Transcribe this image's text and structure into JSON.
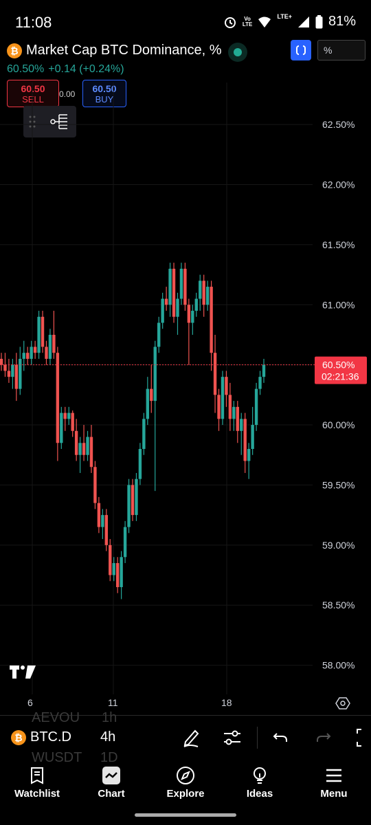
{
  "status_bar": {
    "time": "11:08",
    "volte_top": "Vo",
    "volte_bottom": "LTE",
    "lte_label": "LTE+",
    "battery": "81%"
  },
  "header": {
    "coin_glyph": "₿",
    "title": "Market Cap BTC Dominance, %",
    "price": "60.50%",
    "change": "+0.14 (+0.24%)",
    "percent_field": "%",
    "sell_price": "60.50",
    "sell_label": "SELL",
    "buy_price": "60.50",
    "buy_label": "BUY",
    "spread": "0.00"
  },
  "chart_data": {
    "type": "candlestick",
    "x_ticks": [
      "6",
      "11",
      "18"
    ],
    "y_ticks": [
      "62.50%",
      "62.00%",
      "61.50%",
      "61.00%",
      "60.50%",
      "60.00%",
      "59.50%",
      "59.00%",
      "58.50%",
      "58.00%"
    ],
    "ylim": [
      57.7,
      62.85
    ],
    "current_price_label": "60.50%",
    "countdown": "02:21:36",
    "up_color": "#26a69a",
    "down_color": "#ef5350",
    "candles": [
      [
        60.55,
        60.6,
        60.45,
        60.5
      ],
      [
        60.5,
        60.6,
        60.4,
        60.45
      ],
      [
        60.45,
        60.55,
        60.35,
        60.4
      ],
      [
        60.4,
        60.55,
        60.3,
        60.5
      ],
      [
        60.5,
        60.6,
        60.2,
        60.3
      ],
      [
        60.3,
        60.65,
        60.25,
        60.55
      ],
      [
        60.55,
        60.7,
        60.45,
        60.6
      ],
      [
        60.6,
        60.65,
        60.5,
        60.55
      ],
      [
        60.55,
        60.7,
        60.5,
        60.65
      ],
      [
        60.65,
        60.7,
        60.55,
        60.6
      ],
      [
        60.6,
        60.95,
        60.55,
        60.9
      ],
      [
        60.9,
        60.95,
        60.6,
        60.65
      ],
      [
        60.65,
        60.7,
        60.5,
        60.55
      ],
      [
        60.55,
        60.8,
        60.5,
        60.75
      ],
      [
        60.75,
        60.95,
        60.55,
        60.6
      ],
      [
        60.6,
        60.65,
        59.7,
        59.85
      ],
      [
        59.85,
        60.15,
        59.8,
        60.1
      ],
      [
        60.1,
        60.15,
        59.95,
        60.05
      ],
      [
        60.05,
        60.15,
        60.0,
        60.1
      ],
      [
        60.1,
        60.12,
        59.9,
        59.95
      ],
      [
        59.95,
        60.05,
        59.7,
        59.75
      ],
      [
        59.75,
        59.9,
        59.6,
        59.85
      ],
      [
        59.85,
        60.0,
        59.7,
        59.75
      ],
      [
        59.75,
        59.95,
        59.7,
        59.9
      ],
      [
        59.9,
        60.0,
        59.6,
        59.65
      ],
      [
        59.65,
        59.7,
        59.3,
        59.35
      ],
      [
        59.35,
        59.4,
        59.1,
        59.15
      ],
      [
        59.15,
        59.3,
        59.05,
        59.25
      ],
      [
        59.25,
        59.3,
        58.95,
        59.0
      ],
      [
        59.0,
        59.05,
        58.7,
        58.75
      ],
      [
        58.75,
        58.9,
        58.7,
        58.85
      ],
      [
        58.85,
        58.9,
        58.6,
        58.65
      ],
      [
        58.65,
        58.95,
        58.55,
        58.9
      ],
      [
        58.9,
        59.2,
        58.85,
        59.15
      ],
      [
        59.15,
        59.55,
        59.1,
        59.5
      ],
      [
        59.5,
        59.55,
        59.2,
        59.25
      ],
      [
        59.25,
        59.6,
        59.2,
        59.55
      ],
      [
        59.55,
        59.85,
        59.5,
        59.8
      ],
      [
        59.8,
        60.1,
        59.75,
        60.05
      ],
      [
        60.05,
        60.4,
        60.0,
        60.3
      ],
      [
        60.3,
        60.5,
        60.1,
        60.2
      ],
      [
        60.2,
        60.7,
        59.45,
        60.65
      ],
      [
        60.65,
        60.9,
        60.6,
        60.85
      ],
      [
        60.85,
        61.1,
        60.8,
        61.05
      ],
      [
        61.05,
        61.15,
        60.95,
        61.0
      ],
      [
        61.0,
        61.35,
        60.9,
        61.3
      ],
      [
        61.3,
        61.35,
        60.85,
        60.9
      ],
      [
        60.9,
        61.1,
        60.75,
        61.05
      ],
      [
        61.05,
        61.35,
        61.0,
        61.3
      ],
      [
        61.3,
        61.35,
        60.95,
        61.0
      ],
      [
        61.0,
        61.05,
        60.5,
        60.85
      ],
      [
        60.85,
        61.0,
        60.75,
        60.95
      ],
      [
        60.95,
        61.1,
        60.9,
        61.05
      ],
      [
        61.05,
        61.25,
        60.95,
        61.2
      ],
      [
        61.2,
        61.25,
        60.9,
        61.0
      ],
      [
        61.0,
        61.2,
        60.95,
        61.15
      ],
      [
        61.15,
        61.2,
        60.45,
        60.6
      ],
      [
        60.6,
        60.75,
        60.1,
        60.25
      ],
      [
        60.25,
        60.3,
        59.95,
        60.05
      ],
      [
        60.05,
        60.45,
        60.0,
        60.4
      ],
      [
        60.4,
        60.45,
        60.15,
        60.25
      ],
      [
        60.25,
        60.35,
        59.95,
        60.05
      ],
      [
        60.05,
        60.2,
        59.95,
        60.15
      ],
      [
        60.15,
        60.2,
        59.85,
        59.95
      ],
      [
        59.95,
        60.1,
        59.75,
        60.05
      ],
      [
        60.05,
        60.1,
        59.6,
        59.7
      ],
      [
        59.7,
        59.85,
        59.55,
        59.8
      ],
      [
        59.8,
        60.15,
        59.75,
        60.0
      ],
      [
        60.0,
        60.35,
        59.95,
        60.3
      ],
      [
        60.3,
        60.45,
        60.25,
        60.4
      ],
      [
        60.4,
        60.55,
        60.35,
        60.5
      ]
    ]
  },
  "toolbar": {
    "symbol": "BTC.D",
    "interval": "4h",
    "ghost_top": "AEVOU",
    "ghost_top_int": "1h",
    "ghost_bottom": "WUSDT",
    "ghost_bottom_int": "1D"
  },
  "nav": {
    "watchlist": "Watchlist",
    "chart": "Chart",
    "explore": "Explore",
    "ideas": "Ideas",
    "menu": "Menu"
  }
}
